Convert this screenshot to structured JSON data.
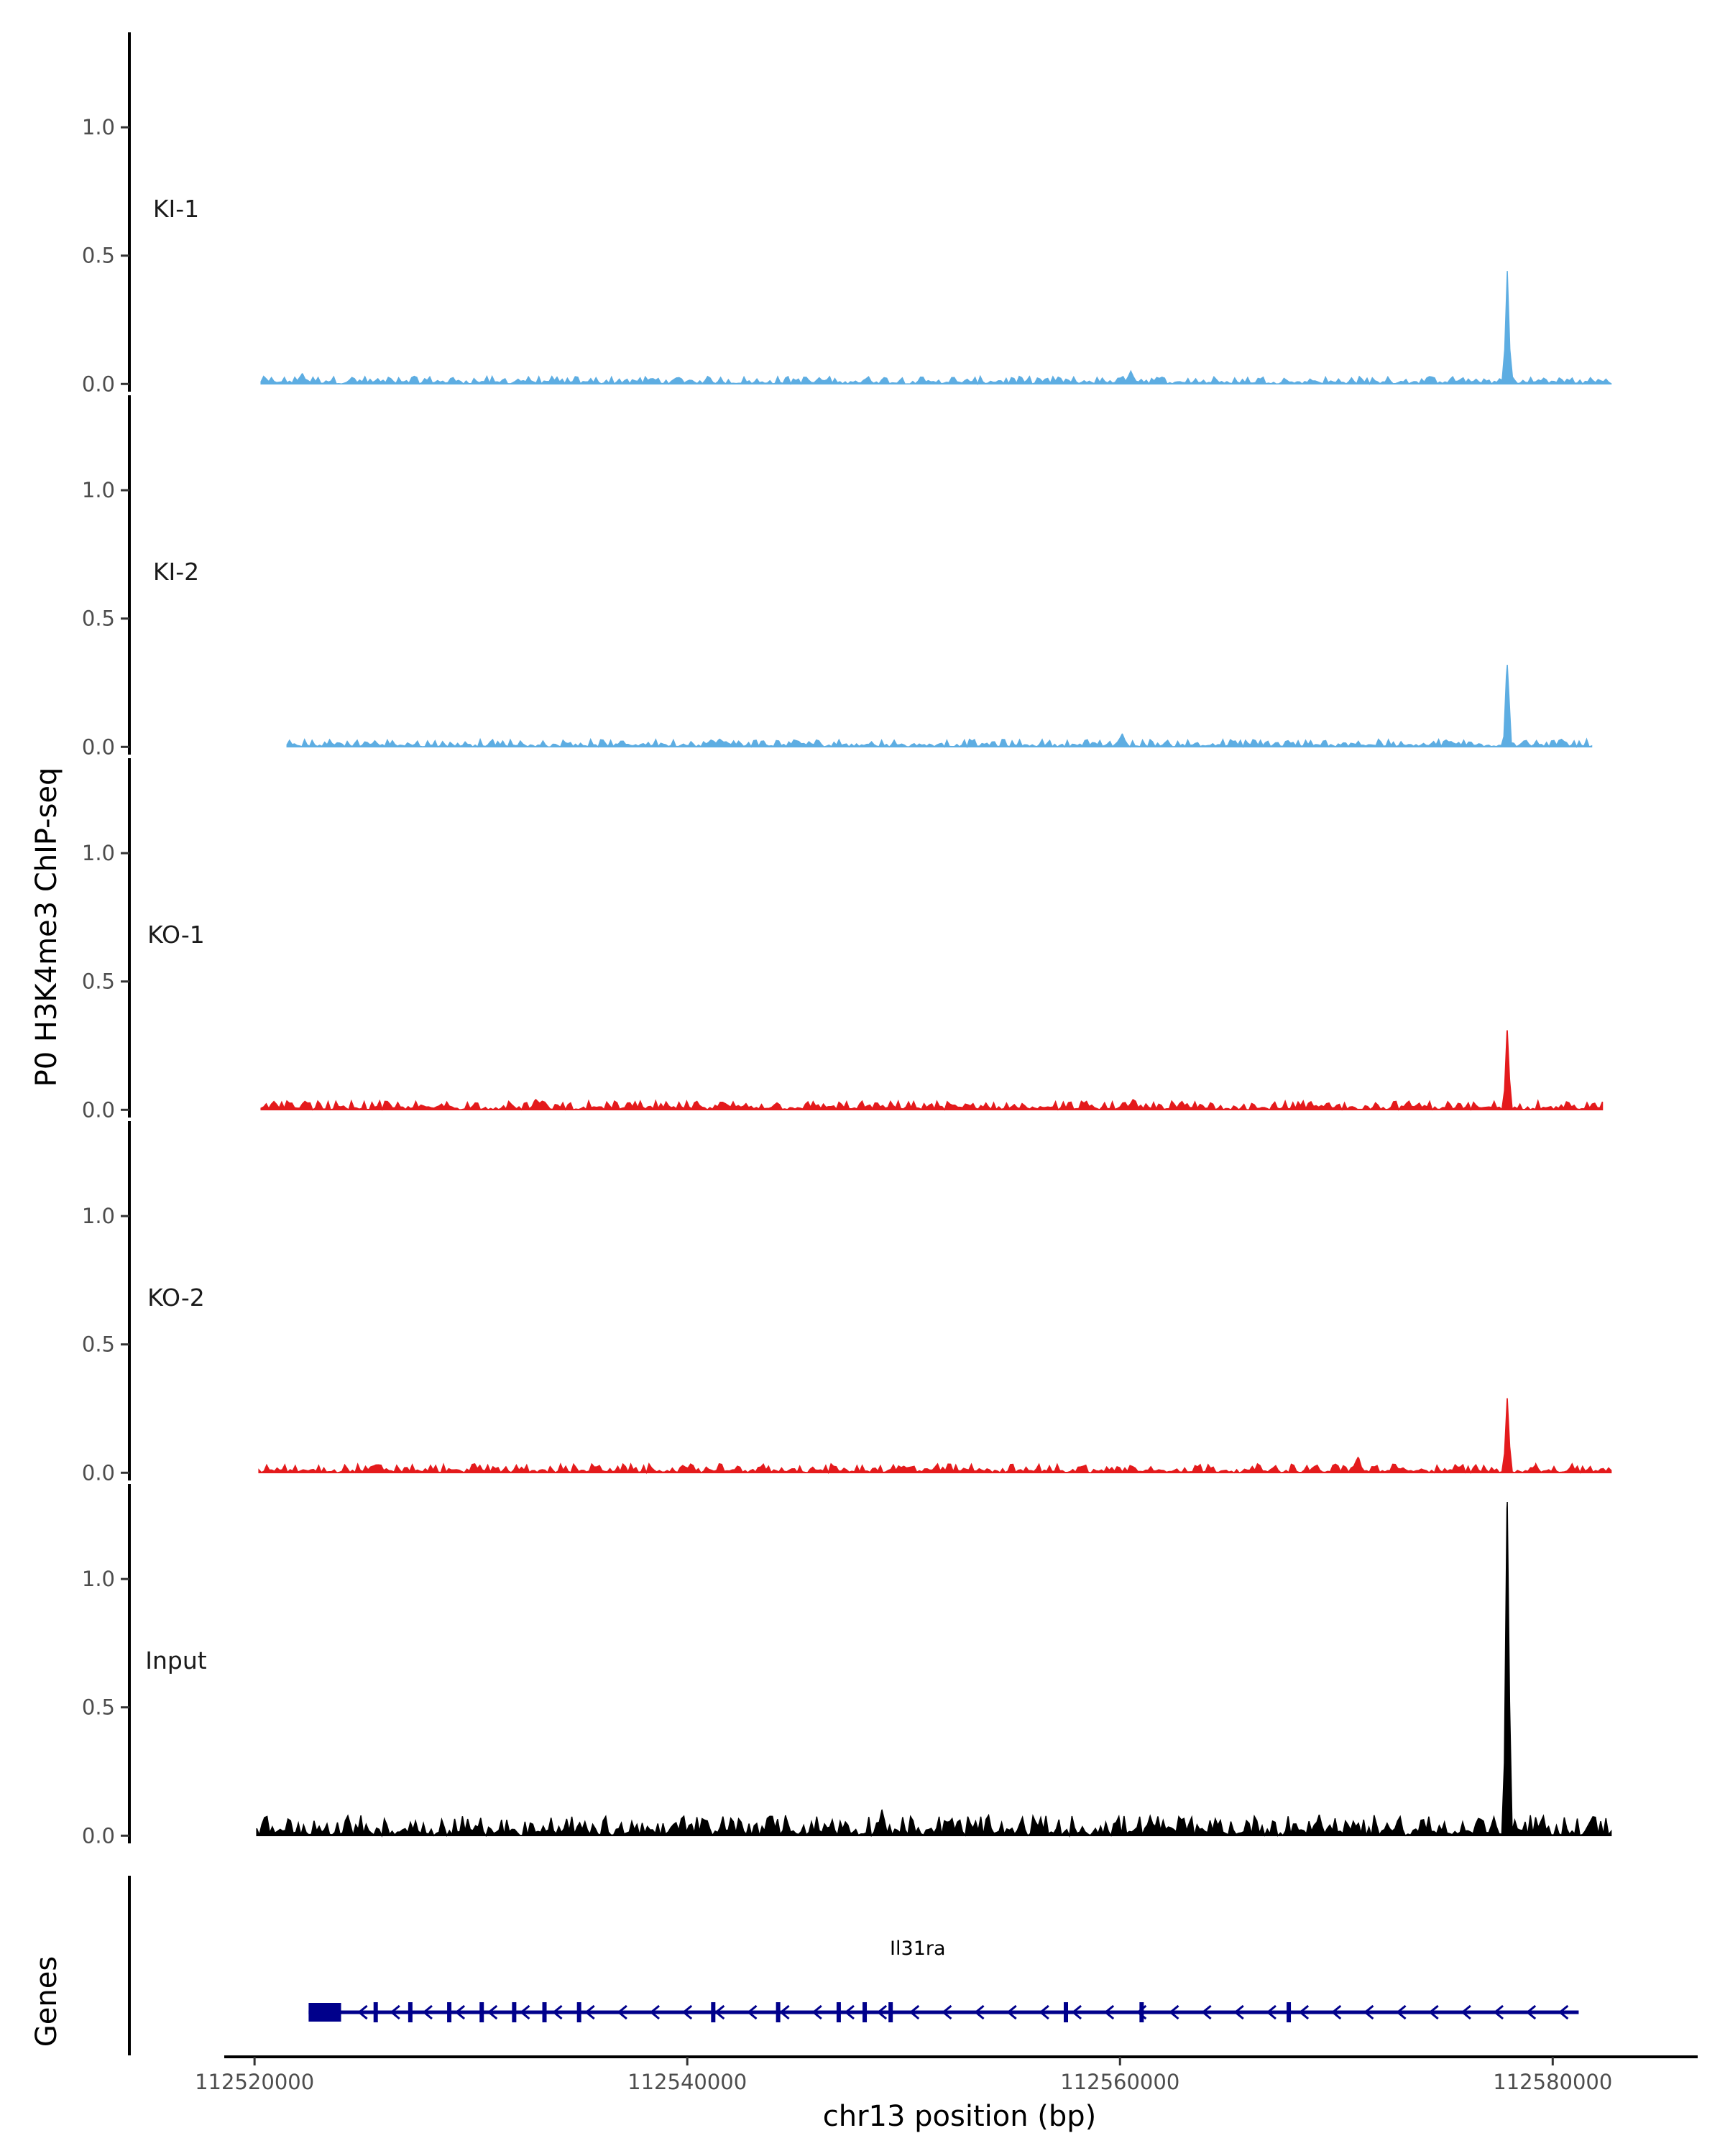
{
  "chart_data": {
    "type": "area",
    "xlabel": "chr13 position (bp)",
    "ylabel": "P0 H3K4me3 ChIP-seq",
    "genes_label": "Genes",
    "xlim": [
      112518600,
      112586700
    ],
    "x_ticks": [
      112520000,
      112540000,
      112560000,
      112580000
    ],
    "x_tick_labels": [
      "112520000",
      "112540000",
      "112560000",
      "112580000"
    ],
    "ylim": [
      -0.03,
      1.37
    ],
    "y_ticks": [
      0.0,
      0.5,
      1.0
    ],
    "y_tick_labels": [
      "0.0",
      "0.5",
      "1.0"
    ],
    "colors": {
      "KI": "#5DADE2",
      "KO": "#E41A1C",
      "Input": "#000000",
      "gene": "#00008B",
      "axis": "#000000"
    },
    "tracks": [
      {
        "name": "KI-1",
        "color": "#5DADE2",
        "x_start": 112520300,
        "x_end": 112582700,
        "baseline_max": 0.03,
        "peaks": [
          {
            "x": 112577900,
            "y": 0.44
          },
          {
            "x": 112560500,
            "y": 0.05
          },
          {
            "x": 112522200,
            "y": 0.04
          }
        ]
      },
      {
        "name": "KI-2",
        "color": "#5DADE2",
        "x_start": 112521500,
        "x_end": 112581800,
        "baseline_max": 0.03,
        "peaks": [
          {
            "x": 112577900,
            "y": 0.32
          },
          {
            "x": 112560100,
            "y": 0.05
          },
          {
            "x": 112541500,
            "y": 0.03
          }
        ]
      },
      {
        "name": "KO-1",
        "color": "#E41A1C",
        "x_start": 112520300,
        "x_end": 112582300,
        "baseline_max": 0.035,
        "peaks": [
          {
            "x": 112577900,
            "y": 0.31
          },
          {
            "x": 112533000,
            "y": 0.04
          },
          {
            "x": 112560600,
            "y": 0.04
          }
        ]
      },
      {
        "name": "KO-2",
        "color": "#E41A1C",
        "x_start": 112520200,
        "x_end": 112582700,
        "baseline_max": 0.035,
        "peaks": [
          {
            "x": 112577900,
            "y": 0.29
          },
          {
            "x": 112571000,
            "y": 0.06
          },
          {
            "x": 112579200,
            "y": 0.03
          }
        ]
      },
      {
        "name": "Input",
        "color": "#000000",
        "x_start": 112520100,
        "x_end": 112582700,
        "baseline_max": 0.08,
        "peaks": [
          {
            "x": 112577900,
            "y": 1.3
          },
          {
            "x": 112549000,
            "y": 0.1
          },
          {
            "x": 112569200,
            "y": 0.08
          }
        ]
      }
    ],
    "gene": {
      "name": "Il31ra",
      "x_start": 112522500,
      "x_end": 112581200,
      "strand": "-",
      "utr": [
        112522500,
        112524000
      ],
      "exons": [
        112525600,
        112527200,
        112529000,
        112530500,
        112532000,
        112533400,
        112535000,
        112541200,
        112544200,
        112547000,
        112548200,
        112549400,
        112557500,
        112561000,
        112567800
      ]
    }
  }
}
